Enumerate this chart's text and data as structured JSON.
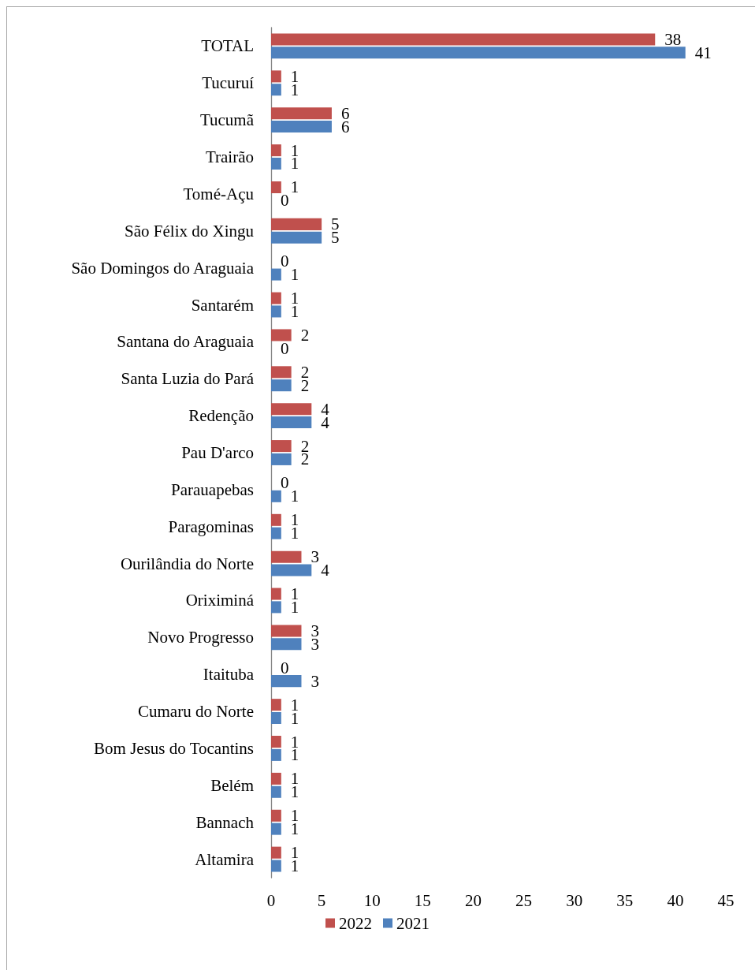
{
  "chart_data": {
    "type": "bar",
    "orientation": "horizontal",
    "categories": [
      "TOTAL",
      "Tucuruí",
      "Tucumã",
      "Trairão",
      "Tomé-Açu",
      "São Félix do Xingu",
      "São Domingos do Araguaia",
      "Santarém",
      "Santana do Araguaia",
      "Santa Luzia do Pará",
      "Redenção",
      "Pau D'arco",
      "Parauapebas",
      "Paragominas",
      "Ourilândia do Norte",
      "Oriximiná",
      "Novo Progresso",
      "Itaituba",
      "Cumaru do Norte",
      "Bom Jesus do Tocantins",
      "Belém",
      "Bannach",
      "Altamira"
    ],
    "series": [
      {
        "name": "2022",
        "color": "#c0504d",
        "values": [
          38,
          1,
          6,
          1,
          1,
          5,
          0,
          1,
          2,
          2,
          4,
          2,
          0,
          1,
          3,
          1,
          3,
          0,
          1,
          1,
          1,
          1,
          1
        ]
      },
      {
        "name": "2021",
        "color": "#4f81bd",
        "values": [
          41,
          1,
          6,
          1,
          0,
          5,
          1,
          1,
          0,
          2,
          4,
          2,
          1,
          1,
          4,
          1,
          3,
          3,
          1,
          1,
          1,
          1,
          1
        ]
      }
    ],
    "xlim": [
      0,
      45
    ],
    "xticks": [
      0,
      5,
      10,
      15,
      20,
      25,
      30,
      35,
      40,
      45
    ],
    "data_labels": true,
    "legend": "bottom"
  }
}
